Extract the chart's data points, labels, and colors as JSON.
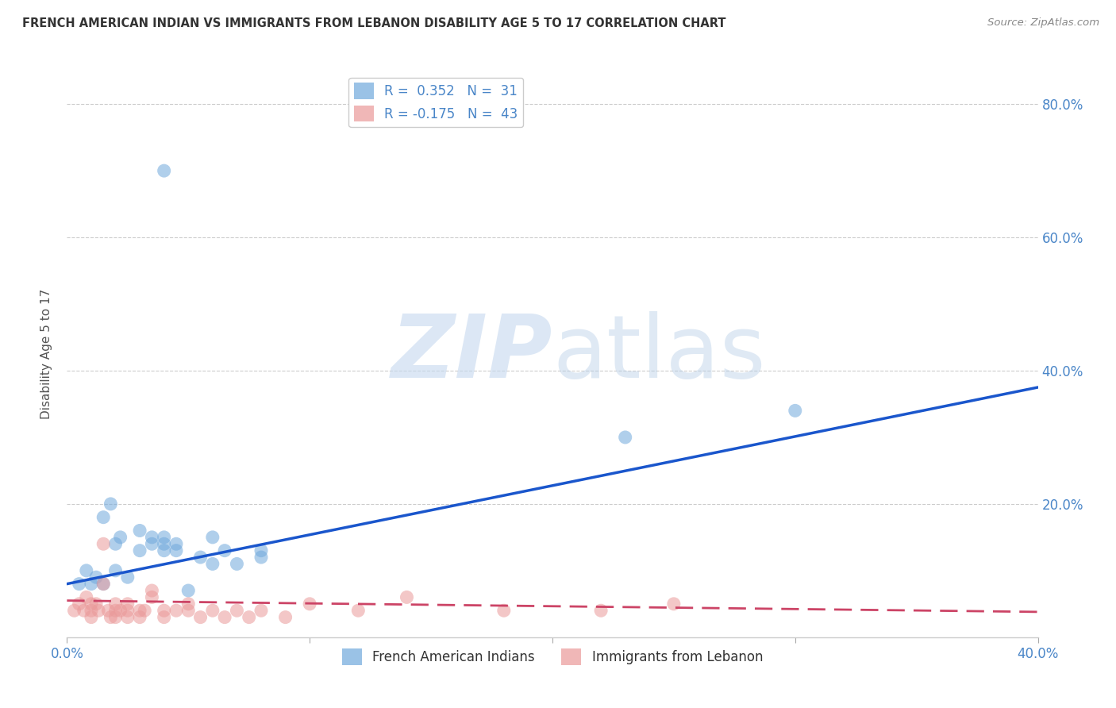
{
  "title": "FRENCH AMERICAN INDIAN VS IMMIGRANTS FROM LEBANON DISABILITY AGE 5 TO 17 CORRELATION CHART",
  "source": "Source: ZipAtlas.com",
  "ylabel": "Disability Age 5 to 17",
  "xlim": [
    0.0,
    0.4
  ],
  "ylim": [
    0.0,
    0.85
  ],
  "xticks": [
    0.0,
    0.1,
    0.2,
    0.3,
    0.4
  ],
  "yticks": [
    0.2,
    0.4,
    0.6,
    0.8
  ],
  "right_ytick_labels": [
    "20.0%",
    "40.0%",
    "60.0%",
    "80.0%"
  ],
  "xtick_labels": [
    "0.0%",
    "",
    "",
    "",
    "40.0%"
  ],
  "blue_R": 0.352,
  "blue_N": 31,
  "pink_R": -0.175,
  "pink_N": 43,
  "blue_color": "#6fa8dc",
  "pink_color": "#ea9999",
  "blue_line_color": "#1a56cc",
  "pink_line_color": "#cc4466",
  "blue_line_x0": 0.0,
  "blue_line_y0": 0.08,
  "blue_line_x1": 0.4,
  "blue_line_y1": 0.375,
  "pink_line_x0": 0.0,
  "pink_line_y0": 0.055,
  "pink_line_x1": 0.4,
  "pink_line_y1": 0.038,
  "blue_scatter_x": [
    0.005,
    0.008,
    0.01,
    0.012,
    0.015,
    0.015,
    0.018,
    0.02,
    0.02,
    0.022,
    0.025,
    0.03,
    0.03,
    0.035,
    0.035,
    0.04,
    0.04,
    0.04,
    0.045,
    0.045,
    0.05,
    0.055,
    0.06,
    0.06,
    0.065,
    0.07,
    0.08,
    0.08,
    0.04,
    0.23,
    0.3
  ],
  "blue_scatter_y": [
    0.08,
    0.1,
    0.08,
    0.09,
    0.08,
    0.18,
    0.2,
    0.1,
    0.14,
    0.15,
    0.09,
    0.13,
    0.16,
    0.14,
    0.15,
    0.15,
    0.14,
    0.13,
    0.14,
    0.13,
    0.07,
    0.12,
    0.15,
    0.11,
    0.13,
    0.11,
    0.13,
    0.12,
    0.7,
    0.3,
    0.34
  ],
  "pink_scatter_x": [
    0.003,
    0.005,
    0.007,
    0.008,
    0.01,
    0.01,
    0.01,
    0.012,
    0.013,
    0.015,
    0.015,
    0.017,
    0.018,
    0.02,
    0.02,
    0.02,
    0.022,
    0.025,
    0.025,
    0.025,
    0.03,
    0.03,
    0.032,
    0.035,
    0.035,
    0.04,
    0.04,
    0.045,
    0.05,
    0.05,
    0.055,
    0.06,
    0.065,
    0.07,
    0.075,
    0.08,
    0.09,
    0.1,
    0.12,
    0.14,
    0.18,
    0.22,
    0.25
  ],
  "pink_scatter_y": [
    0.04,
    0.05,
    0.04,
    0.06,
    0.05,
    0.04,
    0.03,
    0.05,
    0.04,
    0.14,
    0.08,
    0.04,
    0.03,
    0.05,
    0.04,
    0.03,
    0.04,
    0.05,
    0.04,
    0.03,
    0.04,
    0.03,
    0.04,
    0.06,
    0.07,
    0.04,
    0.03,
    0.04,
    0.05,
    0.04,
    0.03,
    0.04,
    0.03,
    0.04,
    0.03,
    0.04,
    0.03,
    0.05,
    0.04,
    0.06,
    0.04,
    0.04,
    0.05
  ]
}
